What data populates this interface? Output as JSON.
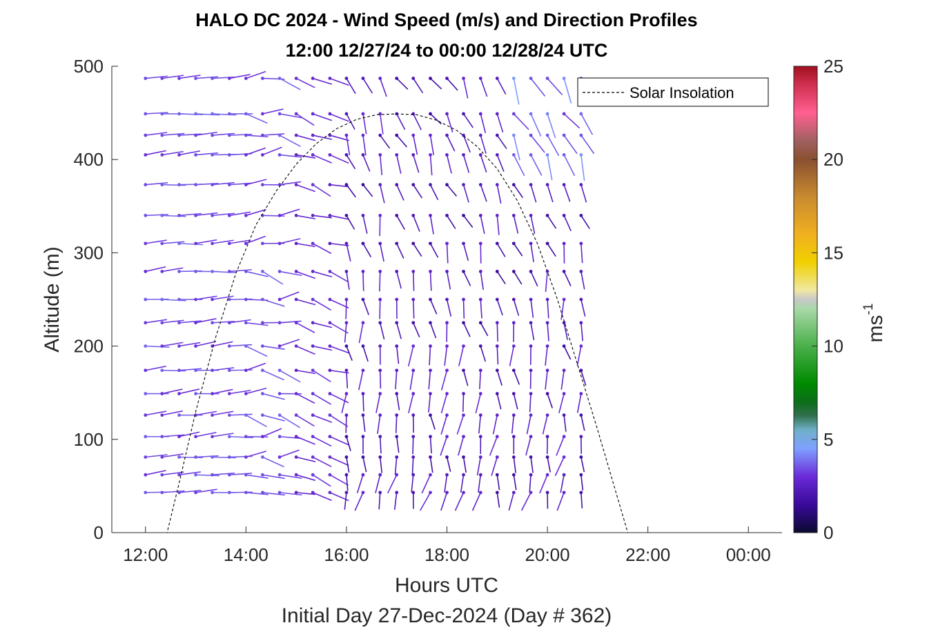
{
  "chart_data": {
    "type": "quiver",
    "title": "HALO DC 2024 - Wind Speed (m/s) and Direction Profiles",
    "subtitle": "12:00 12/27/24 to 00:00 12/28/24  UTC",
    "xlabel": "Hours UTC",
    "xlabel2": "Initial Day 27-Dec-2024 (Day # 362)",
    "ylabel": "Altitude (m)",
    "x_unit": "hours since 00:00 12/27/24 UTC",
    "xlim": [
      11.33,
      24.67
    ],
    "ylim": [
      0,
      500
    ],
    "x_ticks": [
      12,
      14,
      16,
      18,
      20,
      22,
      24
    ],
    "x_tick_labels": [
      "12:00",
      "14:00",
      "16:00",
      "18:00",
      "20:00",
      "22:00",
      "00:00"
    ],
    "y_ticks": [
      0,
      100,
      200,
      300,
      400,
      500
    ],
    "y_tick_labels": [
      "0",
      "100",
      "200",
      "300",
      "400",
      "500"
    ],
    "colorbar": {
      "label": "ms-1",
      "label_main": "ms",
      "label_sup": "-1",
      "range": [
        0,
        25
      ],
      "ticks": [
        0,
        5,
        10,
        15,
        20,
        25
      ],
      "tick_labels": [
        "0",
        "5",
        "10",
        "15",
        "20",
        "25"
      ],
      "color_stops": [
        {
          "v": 0,
          "c": "#0a0a30"
        },
        {
          "v": 1.5,
          "c": "#3a0a9a"
        },
        {
          "v": 3,
          "c": "#6a2ad8"
        },
        {
          "v": 4.5,
          "c": "#7fa0ff"
        },
        {
          "v": 5.5,
          "c": "#6fb0c8"
        },
        {
          "v": 6.3,
          "c": "#2f6f4a"
        },
        {
          "v": 7,
          "c": "#0c6e1a"
        },
        {
          "v": 8,
          "c": "#008a00"
        },
        {
          "v": 10,
          "c": "#4ab04a"
        },
        {
          "v": 12,
          "c": "#a8d8a8"
        },
        {
          "v": 12.5,
          "c": "#c8c8c8"
        },
        {
          "v": 13,
          "c": "#f0e8a0"
        },
        {
          "v": 14.5,
          "c": "#f0d000"
        },
        {
          "v": 16,
          "c": "#f0b020"
        },
        {
          "v": 18,
          "c": "#c88a30"
        },
        {
          "v": 20,
          "c": "#8a5030"
        },
        {
          "v": 21,
          "c": "#a06060"
        },
        {
          "v": 22.5,
          "c": "#ff6090"
        },
        {
          "v": 24,
          "c": "#d03050"
        },
        {
          "v": 25,
          "c": "#a01020"
        }
      ]
    },
    "legend": {
      "entries": [
        "Solar Insolation"
      ],
      "location": "top-right"
    },
    "solar_insolation": {
      "style": "dashed-black",
      "points": [
        [
          11.33,
          0
        ],
        [
          12.43,
          0
        ],
        [
          12.7,
          60
        ],
        [
          13.0,
          130
        ],
        [
          13.4,
          210
        ],
        [
          13.8,
          278
        ],
        [
          14.2,
          330
        ],
        [
          14.6,
          366
        ],
        [
          15.0,
          395
        ],
        [
          15.4,
          417
        ],
        [
          15.8,
          433
        ],
        [
          16.2,
          443
        ],
        [
          16.6,
          448
        ],
        [
          17.0,
          449
        ],
        [
          17.4,
          448
        ],
        [
          17.8,
          442
        ],
        [
          18.2,
          431
        ],
        [
          18.6,
          414
        ],
        [
          19.0,
          390
        ],
        [
          19.4,
          356
        ],
        [
          19.8,
          310
        ],
        [
          20.2,
          250
        ],
        [
          20.6,
          180
        ],
        [
          21.0,
          110
        ],
        [
          21.3,
          55
        ],
        [
          21.6,
          0
        ],
        [
          24.67,
          0
        ]
      ]
    },
    "wind_field": {
      "times": [
        12.0,
        12.33,
        12.67,
        13.0,
        13.33,
        13.67,
        14.0,
        14.33,
        14.67,
        15.0,
        15.33,
        15.67,
        16.0,
        16.33,
        16.67,
        17.0,
        17.33,
        17.67,
        18.0,
        18.33,
        18.67,
        19.0,
        19.33,
        19.67,
        20.0,
        20.33,
        20.67
      ],
      "altitudes": [
        43,
        62,
        81,
        103,
        126,
        149,
        174,
        200,
        225,
        250,
        280,
        310,
        340,
        373,
        405,
        426,
        449,
        487
      ],
      "direction_regimes_deg_from": [
        {
          "t_max": 14.8,
          "dir": 265
        },
        {
          "t_max": 16.0,
          "dir_low": 295,
          "dir_high": 285
        },
        {
          "t_max": 24.0,
          "dir_low": 10,
          "dir_high": 330
        }
      ],
      "speed_range_ms": [
        1.5,
        4.5
      ],
      "note_speed": "typical speeds ~2-3 m/s"
    }
  }
}
